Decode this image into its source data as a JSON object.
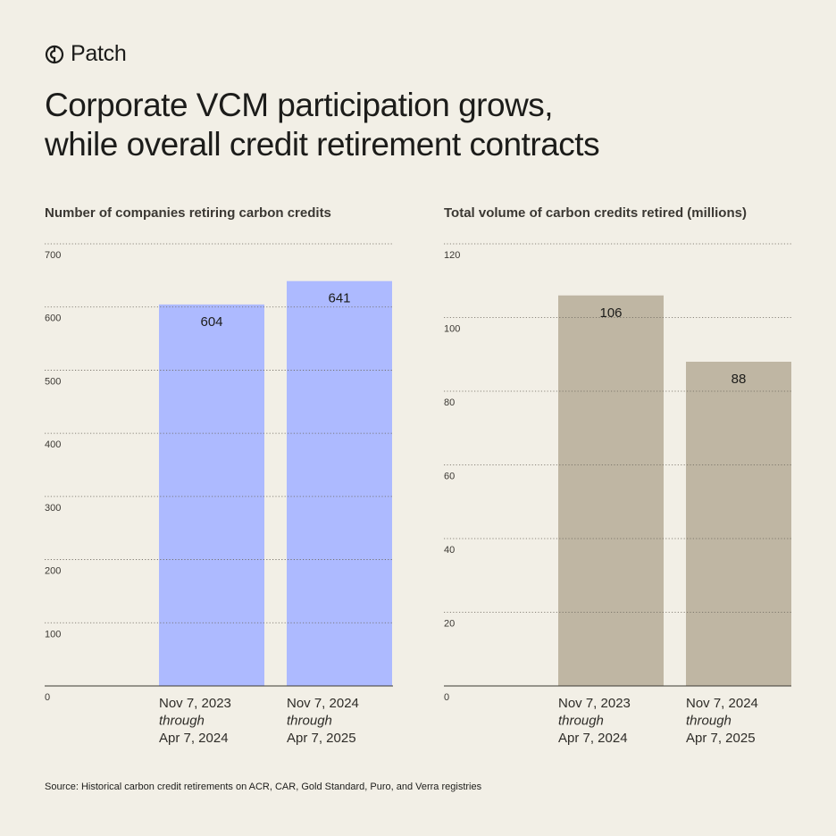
{
  "brand": {
    "name": "Patch",
    "logo_icon": "patch-logo-icon"
  },
  "headline": {
    "line1": "Corporate VCM participation grows,",
    "line2": "while overall credit retirement contracts"
  },
  "colors": {
    "background": "#f2efe6",
    "companies_bar": "#adbaff",
    "volume_bar": "#bfb6a3",
    "text": "#1c1c1a"
  },
  "chart_data": [
    {
      "type": "bar",
      "title": "Number of companies retiring carbon credits",
      "xlabel": "",
      "ylabel": "",
      "ylim": [
        0,
        700
      ],
      "yticks": [
        0,
        100,
        200,
        300,
        400,
        500,
        600,
        700
      ],
      "grid": true,
      "categories": [
        [
          "Nov 7, 2023",
          "through",
          "Apr 7, 2024"
        ],
        [
          "Nov 7, 2024",
          "through",
          "Apr 7, 2025"
        ]
      ],
      "values": [
        604,
        641
      ],
      "data_labels": [
        "604",
        "641"
      ],
      "bar_color": "#adbaff"
    },
    {
      "type": "bar",
      "title": "Total volume of carbon credits retired (millions)",
      "xlabel": "",
      "ylabel": "",
      "ylim": [
        0,
        120
      ],
      "yticks": [
        0,
        20,
        40,
        60,
        80,
        100,
        120
      ],
      "grid": true,
      "categories": [
        [
          "Nov 7, 2023",
          "through",
          "Apr 7, 2024"
        ],
        [
          "Nov 7, 2024",
          "through",
          "Apr 7, 2025"
        ]
      ],
      "values": [
        106,
        88
      ],
      "data_labels": [
        "106",
        "88"
      ],
      "bar_color": "#bfb6a3"
    }
  ],
  "source": "Source: Historical carbon credit retirements on ACR, CAR, Gold Standard, Puro, and Verra registries"
}
